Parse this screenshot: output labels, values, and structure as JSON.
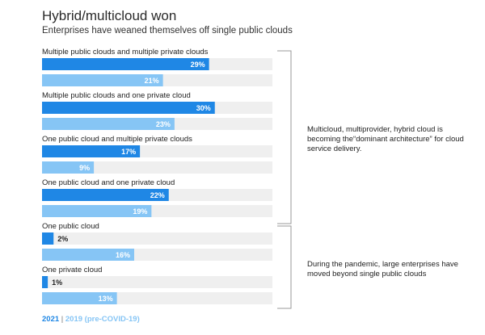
{
  "header": {
    "title": "Hybrid/multicloud won",
    "subtitle": "Enterprises have weaned themselves off single public clouds"
  },
  "annotations": [
    "Multicloud, multiprovider, hybrid cloud is becoming the“dominant architecture” for cloud service delivery.",
    "During the pandemic, large enterprises have moved beyond single public clouds"
  ],
  "legend": {
    "y2021": "2021",
    "separator": "|",
    "y2019": "2019 (pre-COVID-19)"
  },
  "colors": {
    "series_2021": "#1f87e5",
    "series_2019": "#86c5f5",
    "track": "#efefef",
    "bracket": "#999999"
  },
  "chart_data": {
    "type": "bar",
    "orientation": "horizontal",
    "categories": [
      "Multiple public clouds and multiple private clouds",
      "Multiple public clouds and one private cloud",
      "One public cloud and multiple private clouds",
      "One public cloud and one private cloud",
      "One public cloud",
      "One private cloud"
    ],
    "series": [
      {
        "name": "2021",
        "values": [
          29,
          30,
          17,
          22,
          2,
          1
        ]
      },
      {
        "name": "2019 (pre-COVID-19)",
        "values": [
          21,
          23,
          9,
          19,
          16,
          13
        ]
      }
    ],
    "value_suffix": "%",
    "xlim": [
      0,
      40
    ],
    "grid": false
  }
}
